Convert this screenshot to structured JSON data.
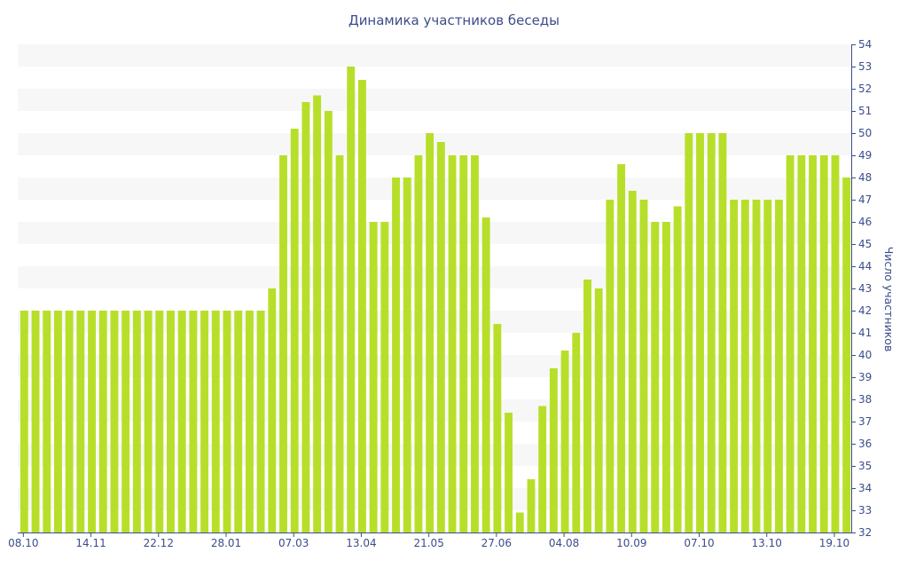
{
  "chart_data": {
    "type": "bar",
    "title": "Динамика участников беседы",
    "xlabel": "",
    "ylabel": "Число участников",
    "ylim": [
      32,
      54
    ],
    "y_ticks": [
      32,
      33,
      34,
      35,
      36,
      37,
      38,
      39,
      40,
      41,
      42,
      43,
      44,
      45,
      46,
      47,
      48,
      49,
      50,
      51,
      52,
      53,
      54
    ],
    "x_tick_labels": [
      {
        "label": "08.10",
        "index": 0
      },
      {
        "label": "14.11",
        "index": 6
      },
      {
        "label": "22.12",
        "index": 12
      },
      {
        "label": "28.01",
        "index": 18
      },
      {
        "label": "07.03",
        "index": 24
      },
      {
        "label": "13.04",
        "index": 30
      },
      {
        "label": "21.05",
        "index": 36
      },
      {
        "label": "27.06",
        "index": 42
      },
      {
        "label": "04.08",
        "index": 48
      },
      {
        "label": "10.09",
        "index": 54
      },
      {
        "label": "07.10",
        "index": 60
      },
      {
        "label": "13.10",
        "index": 66
      },
      {
        "label": "19.10",
        "index": 72
      }
    ],
    "grid": "horizontal alternating bands",
    "legend": "none",
    "colors": {
      "bar": "#b7df2a",
      "band": "#f7f7f7",
      "text": "#3c4d8a",
      "axis": "#3c4d8a"
    },
    "values": [
      42,
      42,
      42,
      42,
      42,
      42,
      42,
      42,
      42,
      42,
      42,
      42,
      42,
      42,
      42,
      42,
      42,
      42,
      42,
      42,
      42,
      42,
      43,
      49,
      50.2,
      51.4,
      51.7,
      51,
      49,
      53,
      52.4,
      46,
      46,
      48,
      48,
      49,
      50,
      49.6,
      49,
      49,
      49,
      46.2,
      41.4,
      37.4,
      32.9,
      34.4,
      37.7,
      39.4,
      40.2,
      41,
      43.4,
      43,
      47,
      48.6,
      47.4,
      47,
      46,
      46,
      46.7,
      50,
      50,
      50,
      50,
      47,
      47,
      47,
      47,
      47,
      49,
      49,
      49,
      49,
      49,
      48
    ]
  }
}
